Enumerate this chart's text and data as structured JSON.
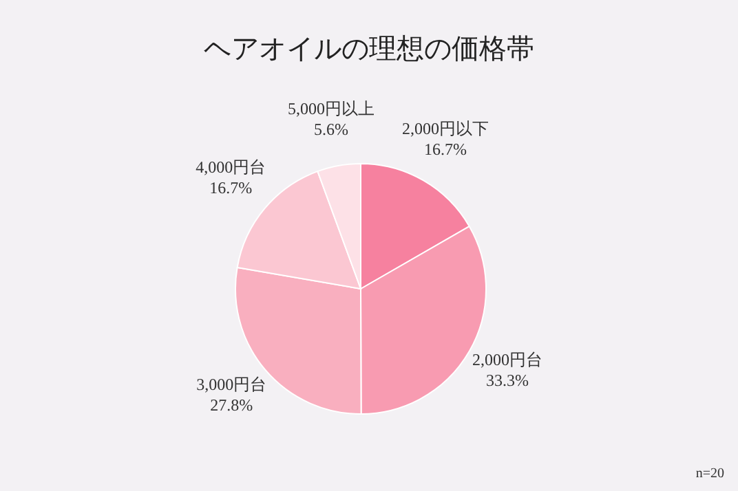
{
  "chart_data": {
    "type": "pie",
    "title": "ヘアオイルの理想の価格帯",
    "categories": [
      "2,000円以下",
      "2,000円台",
      "3,000円台",
      "4,000円台",
      "5,000円以上"
    ],
    "values": [
      16.7,
      33.3,
      27.8,
      16.7,
      5.6
    ],
    "value_labels": [
      "16.7%",
      "33.3%",
      "27.8%",
      "16.7%",
      "5.6%"
    ],
    "colors": [
      "#f6819f",
      "#f89bb1",
      "#f9afbf",
      "#fbc7d2",
      "#fde1e7"
    ],
    "annotations": [
      "n=20"
    ]
  }
}
